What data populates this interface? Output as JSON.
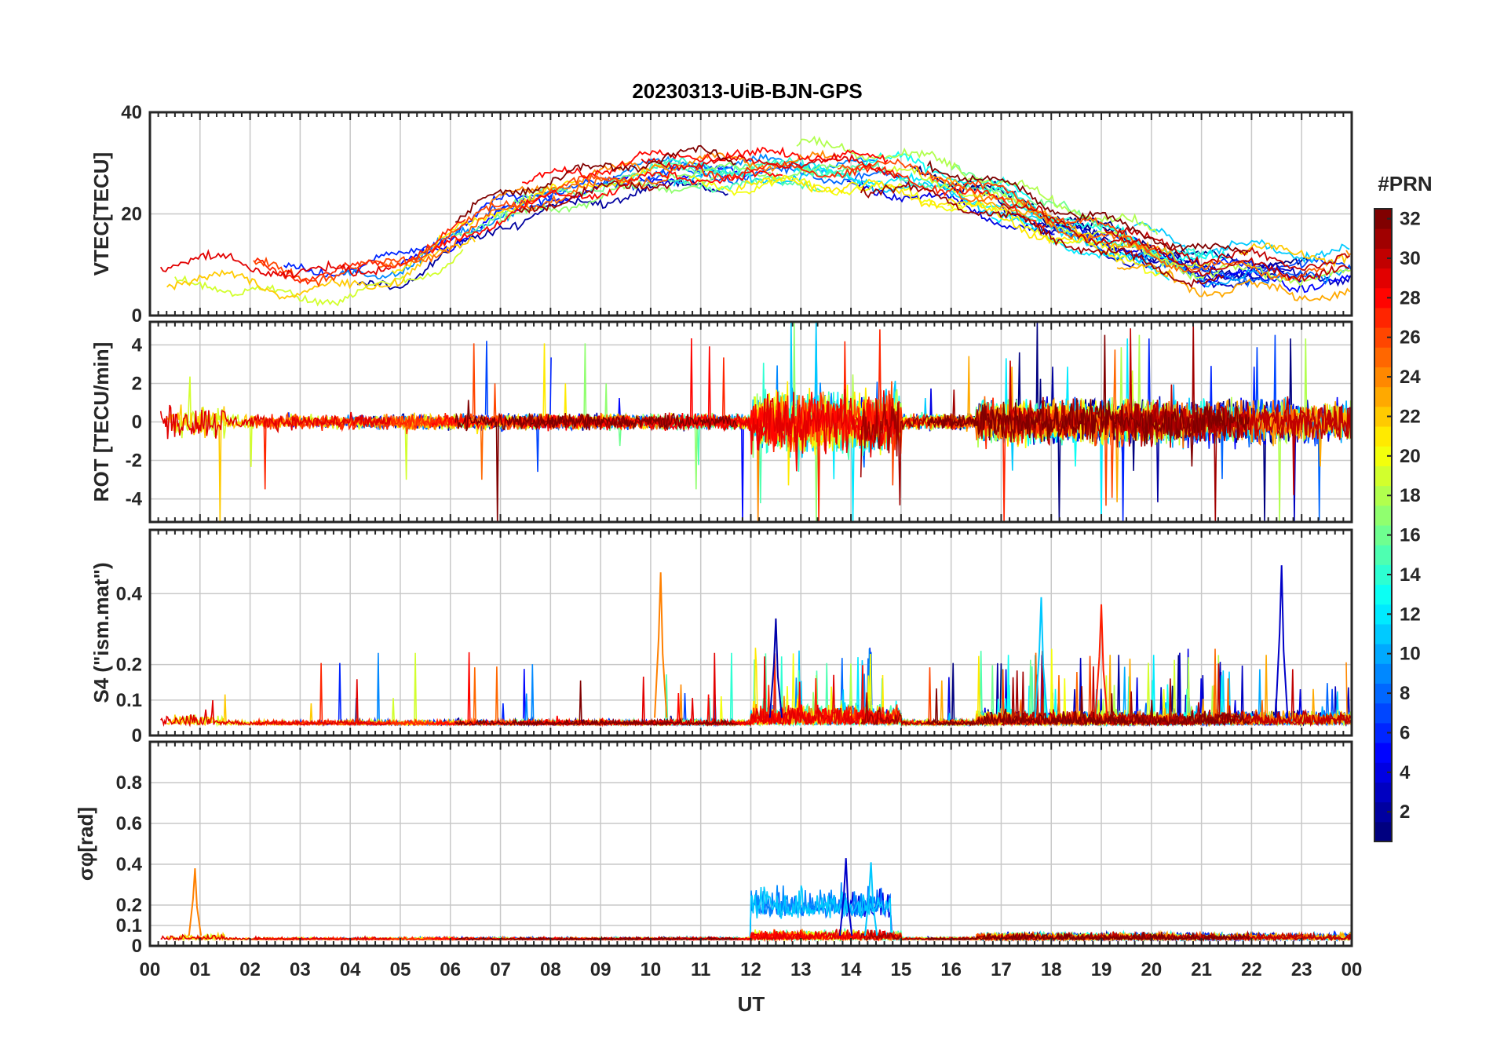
{
  "chart_data": [
    {
      "type": "line",
      "title": "20230313-UiB-BJN-GPS",
      "ylabel": "VTEC[TECU]",
      "xlim": [
        0,
        24
      ],
      "ylim": [
        0,
        40
      ],
      "yticks": [
        0,
        20,
        40
      ],
      "ytick_labels": [
        "0",
        "20",
        "40"
      ],
      "grid": true,
      "series_note": "32 GPS PRN tracks colored by PRN; VTEC rises from ~8 TECU at night to ~30 TECU near 10-14 UT",
      "envelope_x": [
        0,
        1,
        2,
        3,
        4,
        5,
        6,
        7,
        8,
        9,
        10,
        11,
        12,
        13,
        14,
        15,
        16,
        17,
        18,
        19,
        20,
        21,
        22,
        23,
        24
      ],
      "envelope_y": [
        9,
        10,
        9,
        7,
        8,
        10,
        15,
        21,
        24,
        26,
        28,
        29,
        28,
        29,
        28,
        27,
        25,
        22,
        18,
        15,
        12,
        9,
        9,
        8,
        8
      ]
    },
    {
      "type": "line",
      "ylabel": "ROT [TECU/min]",
      "xlim": [
        0,
        24
      ],
      "ylim": [
        -5.2,
        5.2
      ],
      "yticks": [
        -4,
        -2,
        0,
        2,
        4
      ],
      "ytick_labels": [
        "-4",
        "-2",
        "0",
        "2",
        "4"
      ],
      "grid": true,
      "series_note": "rate of TEC per PRN; noise ±1 TECU/min with spikes to ±4 around 12-15 UT and 21-24 UT"
    },
    {
      "type": "line",
      "ylabel": "S4 (\"ism.mat\")",
      "xlim": [
        0,
        24
      ],
      "ylim": [
        0,
        0.58
      ],
      "yticks": [
        0,
        0.1,
        0.2,
        0.4
      ],
      "ytick_labels": [
        "0",
        "0.1",
        "0.2",
        "0.4"
      ],
      "grid": true,
      "peaks": [
        {
          "x": 10.2,
          "y": 0.46
        },
        {
          "x": 22.6,
          "y": 0.48
        },
        {
          "x": 17.8,
          "y": 0.39
        },
        {
          "x": 12.5,
          "y": 0.33
        },
        {
          "x": 19.0,
          "y": 0.37
        }
      ]
    },
    {
      "type": "line",
      "ylabel": "σφ[rad]",
      "xlim": [
        0,
        24
      ],
      "ylim": [
        0,
        1.0
      ],
      "yticks": [
        0,
        0.1,
        0.2,
        0.4,
        0.6,
        0.8
      ],
      "ytick_labels": [
        "0",
        "0.1",
        "0.2",
        "0.4",
        "0.6",
        "0.8"
      ],
      "grid": true,
      "peaks": [
        {
          "x": 0.9,
          "y": 0.38
        },
        {
          "x": 13.9,
          "y": 0.43
        },
        {
          "x": 14.4,
          "y": 0.41
        }
      ]
    }
  ],
  "x_axis": {
    "label": "UT",
    "tick_labels": [
      "00",
      "01",
      "02",
      "03",
      "04",
      "05",
      "06",
      "07",
      "08",
      "09",
      "10",
      "11",
      "12",
      "13",
      "14",
      "15",
      "16",
      "17",
      "18",
      "19",
      "20",
      "21",
      "22",
      "23",
      "00"
    ]
  },
  "colorbar": {
    "label": "#PRN",
    "colormap": "jet",
    "range": [
      1,
      32
    ],
    "tick_labels": [
      "2",
      "4",
      "6",
      "8",
      "10",
      "12",
      "14",
      "16",
      "18",
      "20",
      "22",
      "24",
      "26",
      "28",
      "30",
      "32"
    ]
  }
}
